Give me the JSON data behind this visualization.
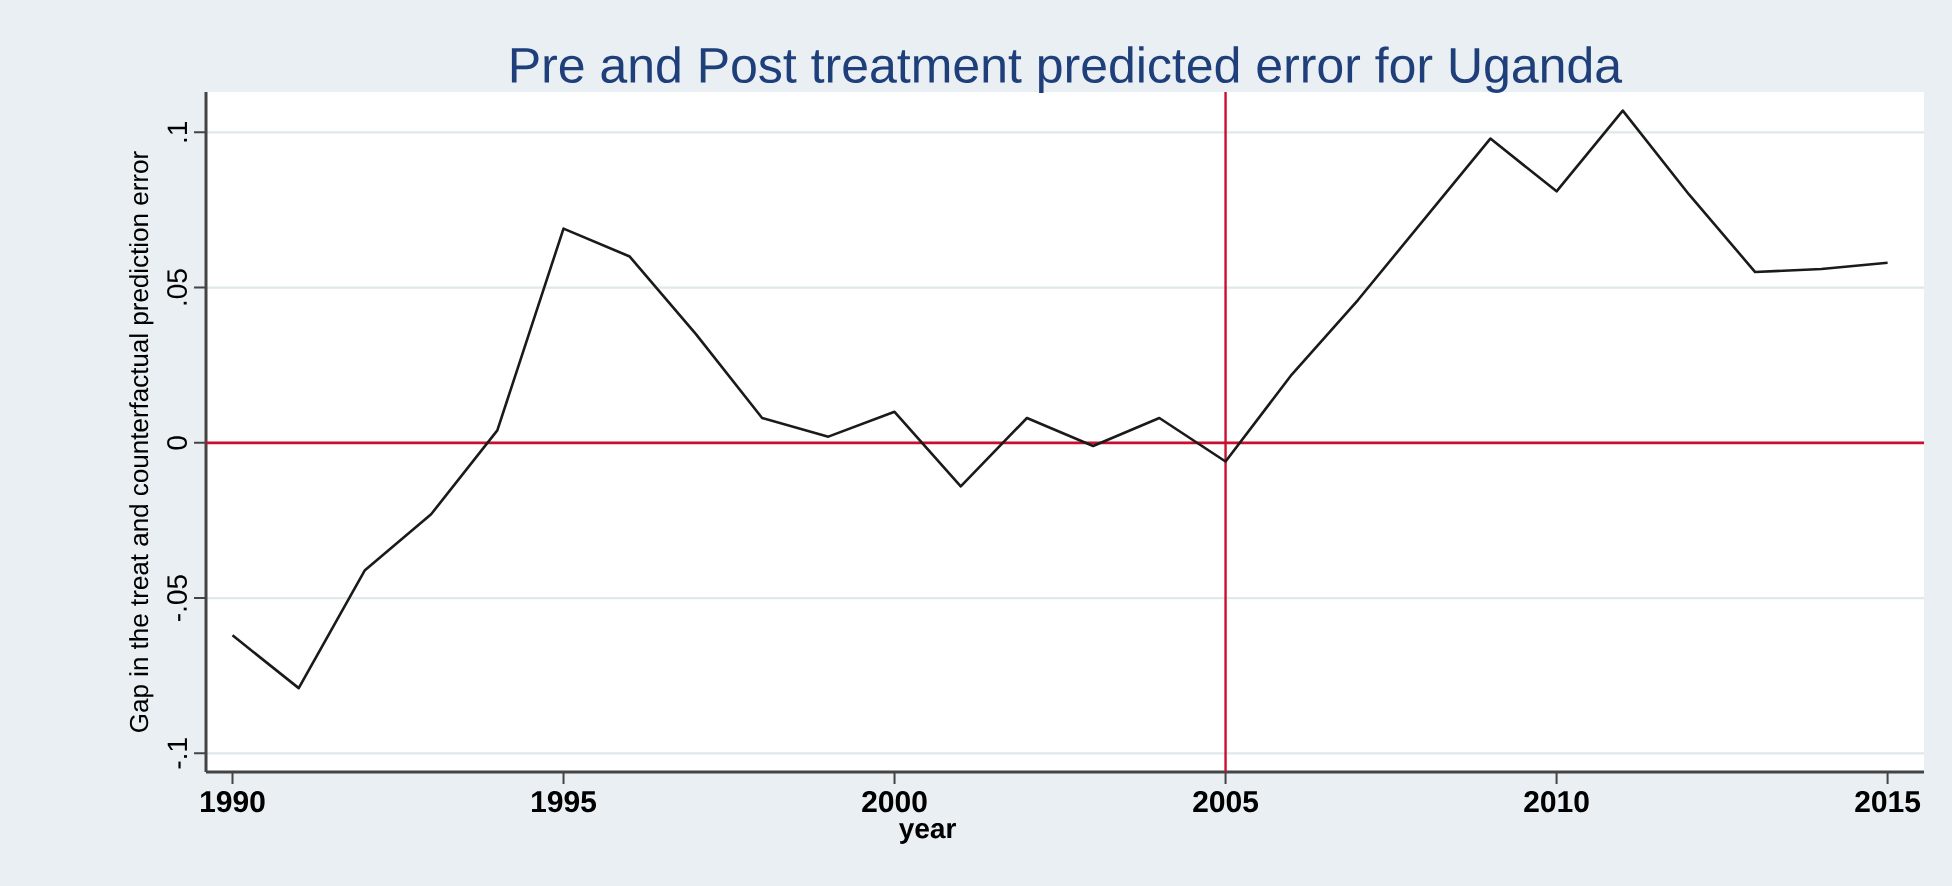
{
  "chart_data": {
    "type": "line",
    "title": "Pre and Post treatment predicted error for Uganda",
    "xlabel": "year",
    "ylabel": "Gap in the treat and counterfactual prediction error",
    "x": [
      1990,
      1991,
      1992,
      1993,
      1994,
      1995,
      1996,
      1997,
      1998,
      1999,
      2000,
      2001,
      2002,
      2003,
      2004,
      2005,
      2006,
      2007,
      2008,
      2009,
      2010,
      2011,
      2012,
      2013,
      2014,
      2015
    ],
    "series": [
      {
        "color": "#1a1a1a",
        "values": [
          -0.062,
          -0.079,
          -0.041,
          -0.023,
          0.004,
          0.069,
          0.06,
          0.035,
          0.008,
          0.002,
          0.01,
          -0.014,
          0.008,
          -0.001,
          0.008,
          -0.006,
          0.022,
          0.046,
          0.072,
          0.098,
          0.081,
          0.107,
          0.08,
          0.055,
          0.056,
          0.058
        ]
      }
    ],
    "xlim": [
      1989.6,
      2015.55
    ],
    "ylim": [
      -0.106,
      0.113
    ],
    "xticks": [
      1990,
      1995,
      2000,
      2005,
      2010,
      2015
    ],
    "yticks": [
      {
        "value": -0.1,
        "label": "-.1"
      },
      {
        "value": -0.05,
        "label": "-.05"
      },
      {
        "value": 0,
        "label": "0"
      },
      {
        "value": 0.05,
        "label": ".05"
      },
      {
        "value": 0.1,
        "label": ".1"
      }
    ],
    "grid": "y",
    "marker": "none",
    "line_style": "solid",
    "ref_lines": [
      {
        "axis": "y",
        "value": 0,
        "color": "#c8102e"
      },
      {
        "axis": "x",
        "value": 2005,
        "color": "#c8102e"
      }
    ]
  }
}
